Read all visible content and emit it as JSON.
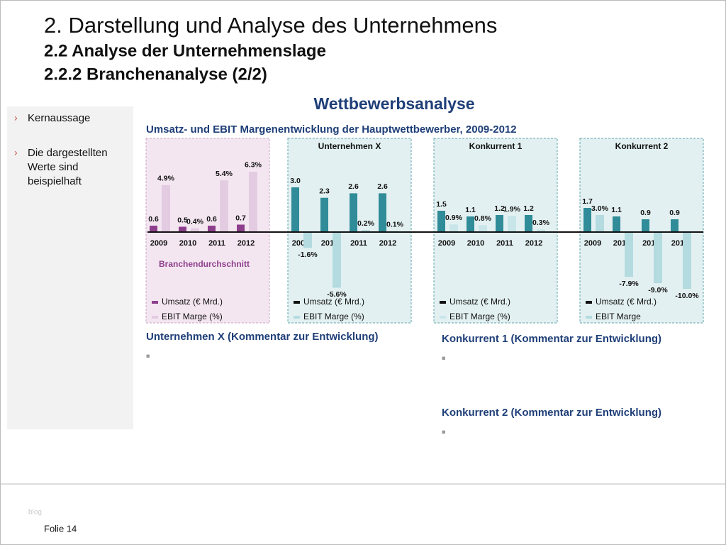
{
  "header": {
    "title": "2. Darstellung und Analyse des Unternehmens",
    "subtitle1": "2.2 Analyse der Unternehmenslage",
    "subtitle2": "2.2.2 Branchenanalyse (2/2)"
  },
  "section_title": "Wettbewerbsanalyse",
  "chart_heading": "Umsatz- und EBIT Margenentwicklung der Hauptwettbewerber, 2009-2012",
  "sidebar": {
    "items": [
      [
        "Kernaussage"
      ],
      [
        "Die dargestellten",
        "Werte sind",
        "beispielhaft"
      ]
    ]
  },
  "chart_data": [
    {
      "type": "bar",
      "title": "Branchendurchschnitt",
      "categories": [
        "2009",
        "2010",
        "2011",
        "2012"
      ],
      "series": [
        {
          "name": "Umsatz (€ Mrd.)",
          "color": "#8e3f8c",
          "values": [
            0.6,
            0.5,
            0.6,
            0.7
          ],
          "value_labels": [
            "0.6",
            "0.5",
            "0.6",
            "0.7"
          ]
        },
        {
          "name": "EBIT Marge (%)",
          "color": "#e3cbe2",
          "values": [
            4.9,
            0.4,
            5.4,
            6.3
          ],
          "value_labels": [
            "4.9%",
            "0.4%",
            "5.4%",
            "6.3%"
          ]
        }
      ]
    },
    {
      "type": "bar",
      "title": "Unternehmen X",
      "categories": [
        "2009",
        "2010",
        "2011",
        "2012"
      ],
      "series": [
        {
          "name": "Umsatz (€ Mrd.)",
          "color": "#2f8c98",
          "values": [
            3.0,
            2.3,
            2.6,
            2.6
          ],
          "value_labels": [
            "3.0",
            "2.3",
            "2.6",
            "2.6"
          ]
        },
        {
          "name": "EBIT Marge (%)",
          "color": "#b3dbe0",
          "values": [
            -1.6,
            -5.6,
            0.2,
            0.1
          ],
          "value_labels": [
            "-1.6%",
            "-5.6%",
            "0.2%",
            "0.1%"
          ]
        }
      ]
    },
    {
      "type": "bar",
      "title": "Konkurrent 1",
      "categories": [
        "2009",
        "2010",
        "2011",
        "2012"
      ],
      "series": [
        {
          "name": "Umsatz (€ Mrd.)",
          "color": "#2f8c98",
          "values": [
            1.5,
            1.1,
            1.2,
            1.2
          ],
          "value_labels": [
            "1.5",
            "1.1",
            "1.2",
            "1.2"
          ]
        },
        {
          "name": "EBIT Marge (%)",
          "color": "#c8e6ea",
          "values": [
            0.9,
            0.8,
            1.9,
            0.3
          ],
          "value_labels": [
            "0.9%",
            "0.8%",
            "1.9%",
            "0.3%"
          ]
        }
      ]
    },
    {
      "type": "bar",
      "title": "Konkurrent 2",
      "categories": [
        "2009",
        "2010",
        "2011",
        "2012"
      ],
      "series": [
        {
          "name": "Umsatz (€ Mrd.)",
          "color": "#2f8c98",
          "values": [
            1.7,
            1.1,
            0.9,
            0.9
          ],
          "value_labels": [
            "1.7",
            "1.1",
            "0.9",
            "0.9"
          ]
        },
        {
          "name": "EBIT Marge",
          "color": "#b3dbe0",
          "values": [
            3.0,
            -7.9,
            -9.0,
            -10.0
          ],
          "value_labels": [
            "3.0%",
            "-7.9%",
            "-9.0%",
            "-10.0%"
          ]
        }
      ]
    }
  ],
  "comments": [
    {
      "heading": "Unternehmen X (Kommentar zur Entwicklung)",
      "bullet": "■"
    },
    {
      "heading": "Konkurrent 1 (Kommentar zur Entwicklung)",
      "bullet": "■"
    },
    {
      "heading": "Konkurrent 2 (Kommentar zur Entwicklung)",
      "bullet": "■"
    }
  ],
  "footer": {
    "watermark": "blog",
    "slide": "Folie 14"
  }
}
